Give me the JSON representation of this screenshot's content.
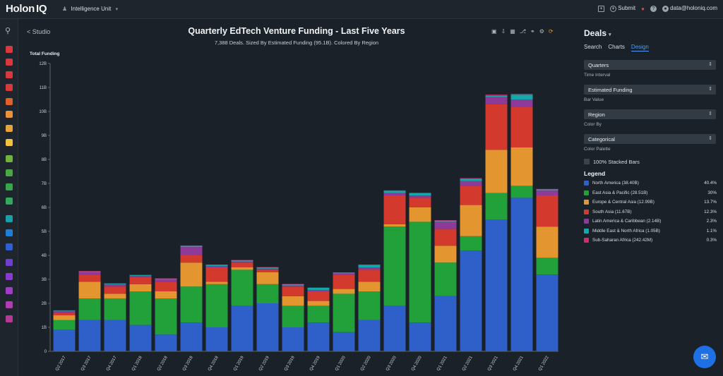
{
  "topbar": {
    "logo": "Holon",
    "logo_iq": "IQ",
    "unit": "Intelligence Unit",
    "submit": "Submit",
    "user_email": "data@holoniq.com"
  },
  "sidebar_icon_colors": [
    "#d8393d",
    "#d8393d",
    "#d8393d",
    "#d8393d",
    "#e0622b",
    "#e8933a",
    "#e8a33a",
    "#f0c23e",
    "#6fb53a",
    "#48a843",
    "#35a848",
    "#34a85d",
    "#18a0a8",
    "#1f7fd6",
    "#2f5fd6",
    "#6f3fd0",
    "#8a3ad0",
    "#a33ac8",
    "#b43ab6",
    "#b43a96"
  ],
  "chart": {
    "back": "< Studio",
    "title": "Quarterly EdTech Venture Funding - Last Five Years",
    "subtitle": "7,388 Deals. Sized By Estimated Funding (95.1B). Colored By Region"
  },
  "chart_data": {
    "type": "bar",
    "stacked": true,
    "ylabel": "Total Funding",
    "ylim": [
      0,
      12
    ],
    "y_ticks": [
      "0",
      "1B",
      "2B",
      "3B",
      "4B",
      "5B",
      "6B",
      "7B",
      "8B",
      "9B",
      "10B",
      "11B",
      "12B"
    ],
    "categories": [
      "Q2 2017",
      "Q3 2017",
      "Q4 2017",
      "Q1 2018",
      "Q2 2018",
      "Q3 2018",
      "Q4 2018",
      "Q1 2019",
      "Q2 2019",
      "Q3 2019",
      "Q4 2019",
      "Q1 2020",
      "Q2 2020",
      "Q3 2020",
      "Q4 2020",
      "Q1 2021",
      "Q2 2021",
      "Q3 2021",
      "Q4 2021",
      "Q1 2022"
    ],
    "series": [
      {
        "name": "North America (38.40B)",
        "color": "#2f5fc8",
        "values": [
          0.9,
          1.3,
          1.3,
          1.1,
          0.7,
          1.2,
          1.0,
          1.9,
          2.0,
          1.0,
          1.2,
          0.8,
          1.3,
          1.9,
          1.2,
          2.3,
          4.2,
          5.5,
          6.4,
          3.2
        ]
      },
      {
        "name": "East Asia & Pacific (28.51B)",
        "color": "#22a03a",
        "values": [
          0.4,
          0.9,
          0.9,
          1.4,
          1.5,
          1.5,
          1.8,
          1.5,
          0.8,
          0.9,
          0.7,
          1.6,
          1.2,
          3.3,
          4.2,
          1.4,
          0.6,
          1.1,
          0.5,
          0.7
        ]
      },
      {
        "name": "Europe & Central Asia (12.99B)",
        "color": "#e3962f",
        "values": [
          0.2,
          0.7,
          0.2,
          0.3,
          0.3,
          1.0,
          0.1,
          0.1,
          0.5,
          0.4,
          0.2,
          0.2,
          0.4,
          0.1,
          0.6,
          0.7,
          1.3,
          1.8,
          1.6,
          1.3
        ]
      },
      {
        "name": "South Asia (11.67B)",
        "color": "#d4392e",
        "values": [
          0.1,
          0.3,
          0.3,
          0.3,
          0.4,
          0.3,
          0.6,
          0.2,
          0.1,
          0.4,
          0.4,
          0.6,
          0.5,
          1.2,
          0.4,
          0.7,
          0.8,
          1.9,
          1.7,
          1.3
        ]
      },
      {
        "name": "Latin America & Caribbean (2.14B)",
        "color": "#8e3a98",
        "values": [
          0.07,
          0.1,
          0.1,
          0.05,
          0.1,
          0.35,
          0.05,
          0.05,
          0.05,
          0.05,
          0.05,
          0.05,
          0.1,
          0.1,
          0.1,
          0.3,
          0.2,
          0.3,
          0.3,
          0.2
        ]
      },
      {
        "name": "Middle East & North Africa (1.05B)",
        "color": "#15a8a8",
        "values": [
          0.03,
          0.03,
          0.03,
          0.03,
          0.03,
          0.05,
          0.05,
          0.05,
          0.05,
          0.05,
          0.1,
          0.03,
          0.1,
          0.1,
          0.1,
          0.05,
          0.1,
          0.05,
          0.2,
          0.05
        ]
      },
      {
        "name": "Sub-Saharan Africa (242.42M)",
        "color": "#d42a6e",
        "values": [
          0.01,
          0.02,
          0.01,
          0.01,
          0.01,
          0.01,
          0.02,
          0.01,
          0.01,
          0.01,
          0.01,
          0.01,
          0.02,
          0.01,
          0.01,
          0.02,
          0.02,
          0.05,
          0.03,
          0.02
        ]
      }
    ]
  },
  "panel": {
    "title": "Deals",
    "tabs": [
      "Search",
      "Charts",
      "Design"
    ],
    "active_tab": "Design",
    "selects": [
      {
        "value": "Quarters",
        "label": "Time Interval"
      },
      {
        "value": "Estimated Funding",
        "label": "Bar Value"
      },
      {
        "value": "Region",
        "label": "Color By"
      },
      {
        "value": "Categorical",
        "label": "Color Palette"
      }
    ],
    "stacked_label": "100% Stacked Bars",
    "legend_title": "Legend",
    "legend": [
      {
        "label": "North America (38.40B)",
        "pct": "40.4%",
        "color": "#2f5fc8"
      },
      {
        "label": "East Asia & Pacific (28.51B)",
        "pct": "30%",
        "color": "#22a03a"
      },
      {
        "label": "Europe & Central Asia (12.99B)",
        "pct": "13.7%",
        "color": "#e3962f"
      },
      {
        "label": "South Asia (11.67B)",
        "pct": "12.3%",
        "color": "#d4392e"
      },
      {
        "label": "Latin America & Caribbean (2.14B)",
        "pct": "2.3%",
        "color": "#8e3a98"
      },
      {
        "label": "Middle East & North Africa (1.05B)",
        "pct": "1.1%",
        "color": "#15a8a8"
      },
      {
        "label": "Sub-Saharan Africa (242.42M)",
        "pct": "0.3%",
        "color": "#d42a6e"
      }
    ]
  }
}
